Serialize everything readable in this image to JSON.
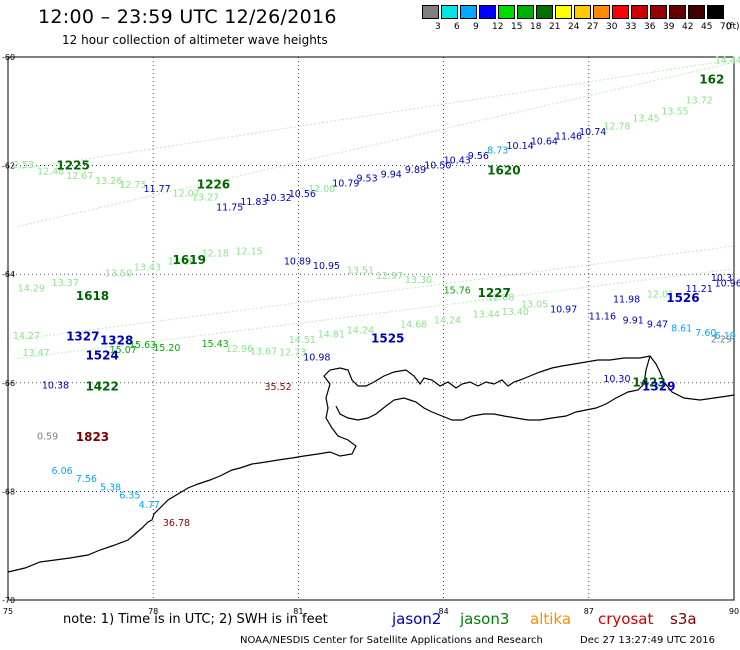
{
  "header": {
    "title": "12:00 – 23:59 UTC 12/26/2016",
    "subtitle": "12 hour collection of altimeter wave heights"
  },
  "color_scale": {
    "labels": [
      "3",
      "6",
      "9",
      "12",
      "15",
      "18",
      "21",
      "24",
      "27",
      "30",
      "33",
      "36",
      "39",
      "42",
      "45",
      "70"
    ],
    "unit": "(ft)",
    "colors": [
      "#808080",
      "#00e5e5",
      "#00a8ff",
      "#0000ff",
      "#00dd00",
      "#00b000",
      "#007000",
      "#ffff00",
      "#ffc800",
      "#ff8c00",
      "#ff0000",
      "#cc0000",
      "#990000",
      "#660000",
      "#400000",
      "#000000"
    ]
  },
  "axes": {
    "x_ticks": [
      "75",
      "78",
      "81",
      "84",
      "87",
      "90"
    ],
    "y_ticks": [
      "-60",
      "-62",
      "-64",
      "-66",
      "-68",
      "-70"
    ]
  },
  "tracks": [
    {
      "color": "#8ae68a",
      "points": [
        [
          75.2,
          -62.07
        ],
        [
          90,
          -60.05
        ]
      ]
    },
    {
      "color": "#8ae68a",
      "points": [
        [
          75.2,
          -63.12
        ],
        [
          90,
          -60.1
        ]
      ]
    },
    {
      "color": "#8ae68a",
      "points": [
        [
          75.2,
          -65.2
        ],
        [
          90,
          -63.48
        ]
      ]
    },
    {
      "color": "#8ae68a",
      "points": [
        [
          75.2,
          -65.55
        ],
        [
          90,
          -63.9
        ]
      ]
    }
  ],
  "passes": [
    {
      "id": "1225",
      "x": 76.0,
      "y": -61.98,
      "color": "#006400"
    },
    {
      "id": "1226",
      "x": 78.9,
      "y": -62.33,
      "color": "#006400"
    },
    {
      "id": "1619",
      "x": 78.4,
      "y": -63.72,
      "color": "#006400"
    },
    {
      "id": "1618",
      "x": 76.4,
      "y": -64.38,
      "color": "#006400"
    },
    {
      "id": "1620",
      "x": 84.9,
      "y": -62.07,
      "color": "#006400"
    },
    {
      "id": "1227",
      "x": 84.7,
      "y": -64.33,
      "color": "#006400"
    },
    {
      "id": "1526",
      "x": 88.6,
      "y": -64.42,
      "color": "#0000c0"
    },
    {
      "id": "1327",
      "x": 76.2,
      "y": -65.13,
      "color": "#0000c0"
    },
    {
      "id": "1328",
      "x": 76.9,
      "y": -65.2,
      "color": "#0000c0"
    },
    {
      "id": "1524",
      "x": 76.6,
      "y": -65.48,
      "color": "#0000c0"
    },
    {
      "id": "1525",
      "x": 82.5,
      "y": -65.17,
      "color": "#0000c0"
    },
    {
      "id": "1422",
      "x": 76.6,
      "y": -66.05,
      "color": "#006400"
    },
    {
      "id": "1423",
      "x": 87.9,
      "y": -65.98,
      "color": "#006400"
    },
    {
      "id": "1329",
      "x": 88.1,
      "y": -66.05,
      "color": "#0000c0"
    },
    {
      "id": "1823",
      "x": 76.4,
      "y": -66.98,
      "color": "#7a0000"
    },
    {
      "id": "162",
      "x": 89.8,
      "y": -60.4,
      "color": "#006400"
    }
  ],
  "labels": [
    {
      "t": "2.53",
      "x": 75.1,
      "y": -61.99,
      "c": "#8ae68a"
    },
    {
      "t": "12.48",
      "x": 75.6,
      "y": -62.11,
      "c": "#8ae68a"
    },
    {
      "t": "12.67",
      "x": 76.2,
      "y": -62.19,
      "c": "#8ae68a"
    },
    {
      "t": "13.26",
      "x": 76.8,
      "y": -62.28,
      "c": "#8ae68a"
    },
    {
      "t": "12.75",
      "x": 77.3,
      "y": -62.36,
      "c": "#8ae68a"
    },
    {
      "t": "11.77",
      "x": 77.8,
      "y": -62.43,
      "c": "#0000c0"
    },
    {
      "t": "12.07",
      "x": 78.4,
      "y": -62.51,
      "c": "#8ae68a"
    },
    {
      "t": "13.27",
      "x": 78.8,
      "y": -62.59,
      "c": "#8ae68a"
    },
    {
      "t": "11.75",
      "x": 79.3,
      "y": -62.77,
      "c": "#0000c0"
    },
    {
      "t": "11.83",
      "x": 79.8,
      "y": -62.67,
      "c": "#0000c0"
    },
    {
      "t": "10.32",
      "x": 80.3,
      "y": -62.6,
      "c": "#0000c0"
    },
    {
      "t": "10.56",
      "x": 80.8,
      "y": -62.52,
      "c": "#0000c0"
    },
    {
      "t": "12.08",
      "x": 81.2,
      "y": -62.43,
      "c": "#8ae68a"
    },
    {
      "t": "10.79",
      "x": 81.7,
      "y": -62.33,
      "c": "#0000c0"
    },
    {
      "t": "9.53",
      "x": 82.2,
      "y": -62.24,
      "c": "#0000c0"
    },
    {
      "t": "9.94",
      "x": 82.7,
      "y": -62.16,
      "c": "#0000c0"
    },
    {
      "t": "9.89",
      "x": 83.2,
      "y": -62.08,
      "c": "#0000c0"
    },
    {
      "t": "10.50",
      "x": 83.6,
      "y": -62.0,
      "c": "#0000c0"
    },
    {
      "t": "10.43",
      "x": 84.0,
      "y": -61.91,
      "c": "#0000c0"
    },
    {
      "t": "9.56",
      "x": 84.5,
      "y": -61.82,
      "c": "#0000c0"
    },
    {
      "t": "8.73",
      "x": 84.9,
      "y": -61.72,
      "c": "#00a8ff"
    },
    {
      "t": "10.14",
      "x": 85.3,
      "y": -61.64,
      "c": "#0000c0"
    },
    {
      "t": "10.64",
      "x": 85.8,
      "y": -61.56,
      "c": "#0000c0"
    },
    {
      "t": "11.46",
      "x": 86.3,
      "y": -61.46,
      "c": "#0000c0"
    },
    {
      "t": "10.74",
      "x": 86.8,
      "y": -61.38,
      "c": "#0000c0"
    },
    {
      "t": "12.78",
      "x": 87.3,
      "y": -61.28,
      "c": "#8ae68a"
    },
    {
      "t": "13.45",
      "x": 87.9,
      "y": -61.13,
      "c": "#8ae68a"
    },
    {
      "t": "13.55",
      "x": 88.5,
      "y": -61.0,
      "c": "#8ae68a"
    },
    {
      "t": "13.72",
      "x": 89.0,
      "y": -60.8,
      "c": "#8ae68a"
    },
    {
      "t": "14.44",
      "x": 89.6,
      "y": -60.06,
      "c": "#8ae68a"
    },
    {
      "t": "14.29",
      "x": 75.2,
      "y": -64.26,
      "c": "#8ae68a"
    },
    {
      "t": "13.37",
      "x": 75.9,
      "y": -64.16,
      "c": "#8ae68a"
    },
    {
      "t": "13.50",
      "x": 77.0,
      "y": -63.99,
      "c": "#8ae68a"
    },
    {
      "t": "13.43",
      "x": 77.6,
      "y": -63.88,
      "c": "#8ae68a"
    },
    {
      "t": "13.19",
      "x": 78.3,
      "y": -63.77,
      "c": "#8ae68a"
    },
    {
      "t": "12.18",
      "x": 79.0,
      "y": -63.62,
      "c": "#8ae68a"
    },
    {
      "t": "12.15",
      "x": 79.7,
      "y": -63.58,
      "c": "#8ae68a"
    },
    {
      "t": "10.89",
      "x": 80.7,
      "y": -63.77,
      "c": "#0000c0"
    },
    {
      "t": "10.95",
      "x": 81.3,
      "y": -63.85,
      "c": "#0000c0"
    },
    {
      "t": "13.51",
      "x": 82.0,
      "y": -63.93,
      "c": "#8ae68a"
    },
    {
      "t": "12.97",
      "x": 82.6,
      "y": -64.03,
      "c": "#8ae68a"
    },
    {
      "t": "13.30",
      "x": 83.2,
      "y": -64.11,
      "c": "#8ae68a"
    },
    {
      "t": "15.76",
      "x": 84.0,
      "y": -64.3,
      "c": "#00b000"
    },
    {
      "t": "12.88",
      "x": 84.9,
      "y": -64.43,
      "c": "#8ae68a"
    },
    {
      "t": "13.05",
      "x": 85.6,
      "y": -64.56,
      "c": "#8ae68a"
    },
    {
      "t": "10.97",
      "x": 86.2,
      "y": -64.65,
      "c": "#0000c0"
    },
    {
      "t": "11.16",
      "x": 87.0,
      "y": -64.78,
      "c": "#0000c0"
    },
    {
      "t": "11.98",
      "x": 87.5,
      "y": -64.47,
      "c": "#0000c0"
    },
    {
      "t": "12.01",
      "x": 88.2,
      "y": -64.37,
      "c": "#8ae68a"
    },
    {
      "t": "11.21",
      "x": 89.0,
      "y": -64.27,
      "c": "#0000c0"
    },
    {
      "t": "10.96",
      "x": 89.6,
      "y": -64.17,
      "c": "#0000c0"
    },
    {
      "t": "10.3",
      "x": 90.0,
      "y": -64.07,
      "c": "#0000c0"
    },
    {
      "t": "9.91",
      "x": 87.7,
      "y": -64.85,
      "c": "#0000c0"
    },
    {
      "t": "9.47",
      "x": 88.2,
      "y": -64.93,
      "c": "#0000c0"
    },
    {
      "t": "8.61",
      "x": 88.7,
      "y": -65.0,
      "c": "#00a8ff"
    },
    {
      "t": "7.60",
      "x": 89.2,
      "y": -65.08,
      "c": "#00a8ff"
    },
    {
      "t": "6.19",
      "x": 89.6,
      "y": -65.14,
      "c": "#00a8ff"
    },
    {
      "t": "2.29",
      "x": 90.0,
      "y": -65.2,
      "c": "#808080"
    },
    {
      "t": "14.27",
      "x": 75.1,
      "y": -65.14,
      "c": "#8ae68a"
    },
    {
      "t": "13.47",
      "x": 75.3,
      "y": -65.45,
      "c": "#8ae68a"
    },
    {
      "t": "15.63",
      "x": 77.5,
      "y": -65.3,
      "c": "#00b000"
    },
    {
      "t": "15.07",
      "x": 77.1,
      "y": -65.4,
      "c": "#00b000"
    },
    {
      "t": "15.20",
      "x": 78.0,
      "y": -65.36,
      "c": "#00b000"
    },
    {
      "t": "15.43",
      "x": 79.0,
      "y": -65.29,
      "c": "#00b000"
    },
    {
      "t": "12.96",
      "x": 79.5,
      "y": -65.38,
      "c": "#8ae68a"
    },
    {
      "t": "13.67",
      "x": 80.0,
      "y": -65.42,
      "c": "#8ae68a"
    },
    {
      "t": "12.73",
      "x": 80.6,
      "y": -65.44,
      "c": "#8ae68a"
    },
    {
      "t": "10.98",
      "x": 81.1,
      "y": -65.53,
      "c": "#0000c0"
    },
    {
      "t": "14.51",
      "x": 80.8,
      "y": -65.21,
      "c": "#8ae68a"
    },
    {
      "t": "14.81",
      "x": 81.4,
      "y": -65.11,
      "c": "#8ae68a"
    },
    {
      "t": "14.24",
      "x": 82.0,
      "y": -65.04,
      "c": "#8ae68a"
    },
    {
      "t": "14.68",
      "x": 83.1,
      "y": -64.93,
      "c": "#8ae68a"
    },
    {
      "t": "14.24",
      "x": 83.8,
      "y": -64.85,
      "c": "#8ae68a"
    },
    {
      "t": "13.44",
      "x": 84.6,
      "y": -64.74,
      "c": "#8ae68a"
    },
    {
      "t": "13.40",
      "x": 85.2,
      "y": -64.7,
      "c": "#8ae68a"
    },
    {
      "t": "10.38",
      "x": 75.7,
      "y": -66.05,
      "c": "#0000c0"
    },
    {
      "t": "35.52",
      "x": 80.3,
      "y": -66.08,
      "c": "#990000"
    },
    {
      "t": "10.30",
      "x": 87.3,
      "y": -65.93,
      "c": "#0000c0"
    },
    {
      "t": "0.59",
      "x": 75.6,
      "y": -66.99,
      "c": "#808080"
    },
    {
      "t": "6.06",
      "x": 75.9,
      "y": -67.62,
      "c": "#00a8ff"
    },
    {
      "t": "7.56",
      "x": 76.4,
      "y": -67.77,
      "c": "#00a8ff"
    },
    {
      "t": "5.38",
      "x": 76.9,
      "y": -67.93,
      "c": "#00a8ff"
    },
    {
      "t": "6.35",
      "x": 77.3,
      "y": -68.08,
      "c": "#00a8ff"
    },
    {
      "t": "4.77",
      "x": 77.7,
      "y": -68.25,
      "c": "#00a8ff"
    },
    {
      "t": "36.78",
      "x": 78.2,
      "y": -68.58,
      "c": "#990000"
    }
  ],
  "footer": {
    "note": "note: 1) Time is in UTC; 2) SWH is in feet",
    "legend": [
      {
        "name": "jason2",
        "color": "#0000c0"
      },
      {
        "name": "jason3",
        "color": "#008000"
      },
      {
        "name": "altika",
        "color": "#ff8c00"
      },
      {
        "name": "cryosat",
        "color": "#cc0000"
      },
      {
        "name": "s3a",
        "color": "#7a0000"
      }
    ],
    "credit": "NOAA/NESDIS Center for Satellite Applications and Research",
    "timestamp": "Dec 27 13:27:49 UTC 2016"
  }
}
